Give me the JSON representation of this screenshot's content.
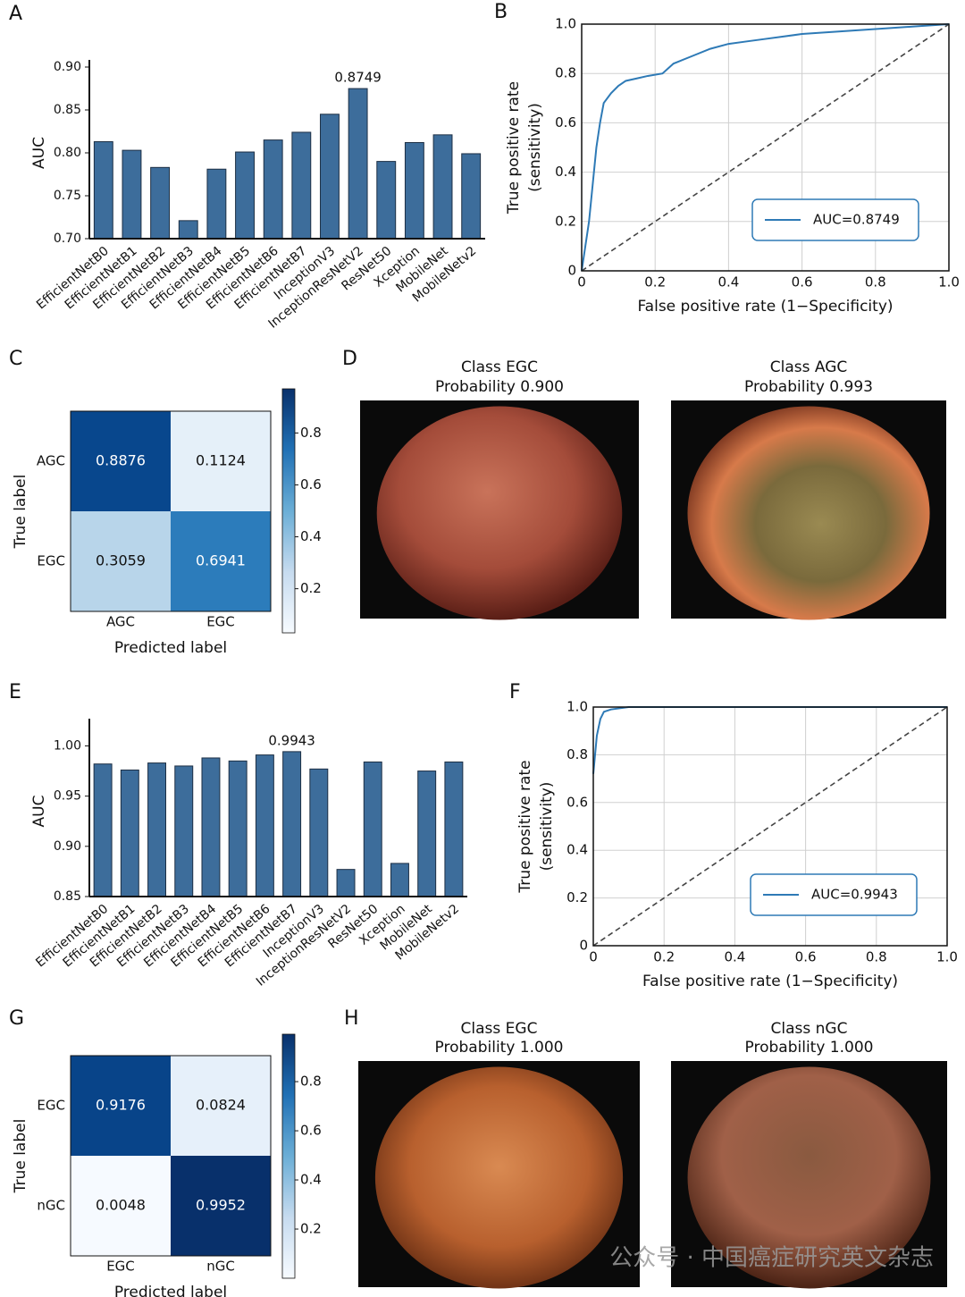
{
  "chart_data": [
    {
      "type": "bar",
      "label": "A",
      "ylabel": "AUC",
      "categories": [
        "EfficientNetB0",
        "EfficientNetB1",
        "EfficientNetB2",
        "EfficientNetB3",
        "EfficientNetB4",
        "EfficientNetB5",
        "EfficientNetB6",
        "EfficientNetB7",
        "InceptionV3",
        "InceptionResNetV2",
        "ResNet50",
        "Xception",
        "MobileNet",
        "MobileNetv2"
      ],
      "values": [
        0.813,
        0.803,
        0.783,
        0.721,
        0.781,
        0.801,
        0.815,
        0.824,
        0.845,
        0.8749,
        0.79,
        0.812,
        0.821,
        0.799
      ],
      "value_labels": [
        null,
        null,
        null,
        null,
        null,
        null,
        null,
        null,
        null,
        "0.8749",
        null,
        null,
        null,
        null
      ],
      "color": "#3d6d9b",
      "ylim": [
        0.7,
        0.9
      ],
      "yticks": [
        {
          "value": 0.7,
          "label": "0.70"
        },
        {
          "value": 0.75,
          "label": "0.75"
        },
        {
          "value": 0.8,
          "label": "0.80"
        },
        {
          "value": 0.85,
          "label": "0.85"
        },
        {
          "value": 0.9,
          "label": "0.90"
        }
      ]
    },
    {
      "type": "line",
      "label": "B",
      "xlabel": "False positive rate (1−Specificity)",
      "ylabel": [
        "True positive rate",
        "(sensitivity)"
      ],
      "x": [
        0,
        0.005,
        0.01,
        0.02,
        0.03,
        0.04,
        0.05,
        0.06,
        0.08,
        0.1,
        0.12,
        0.15,
        0.18,
        0.22,
        0.25,
        0.3,
        0.35,
        0.4,
        0.45,
        0.5,
        0.6,
        0.7,
        0.8,
        0.9,
        1
      ],
      "series": [
        {
          "name": "AUC=0.8749",
          "color": "#2e7ab6",
          "values": [
            0,
            0.05,
            0.1,
            0.2,
            0.35,
            0.5,
            0.6,
            0.68,
            0.72,
            0.75,
            0.77,
            0.78,
            0.79,
            0.8,
            0.84,
            0.87,
            0.9,
            0.92,
            0.93,
            0.94,
            0.96,
            0.97,
            0.98,
            0.99,
            1
          ]
        }
      ],
      "xlim": [
        0,
        1
      ],
      "ylim": [
        0,
        1
      ],
      "xticks": [
        0,
        0.2,
        0.4,
        0.6,
        0.8,
        {
          "value": 1,
          "label": "1.0"
        }
      ],
      "yticks": [
        0,
        0.2,
        0.4,
        0.6,
        0.8,
        {
          "value": 1,
          "label": "1.0"
        }
      ],
      "grid": true,
      "legend": "lower right"
    },
    {
      "type": "heatmap",
      "label": "C",
      "xlabel": "Predicted label",
      "ylabel": "True label",
      "rows": [
        "AGC",
        "EGC"
      ],
      "columns": [
        "AGC",
        "EGC"
      ],
      "values": [
        [
          0.8876,
          0.1124
        ],
        [
          0.3059,
          0.6941
        ]
      ],
      "colormap": "Blues",
      "clim": [
        0.03,
        0.97
      ],
      "cticks": [
        0.2,
        0.4,
        0.6,
        0.8
      ]
    },
    {
      "type": "image",
      "label": "D",
      "images": [
        {
          "title": [
            "Class EGC",
            "Probability 0.900"
          ]
        },
        {
          "title": [
            "Class AGC",
            "Probability 0.993"
          ]
        }
      ]
    },
    {
      "type": "bar",
      "label": "E",
      "ylabel": "AUC",
      "categories": [
        "EfficientNetB0",
        "EfficientNetB1",
        "EfficientNetB2",
        "EfficientNetB3",
        "EfficientNetB4",
        "EfficientNetB5",
        "EfficientNetB6",
        "EfficientNetB7",
        "InceptionV3",
        "InceptionResNetV2",
        "ResNet50",
        "Xception",
        "MobileNet",
        "MobileNetv2"
      ],
      "values": [
        0.982,
        0.976,
        0.983,
        0.98,
        0.988,
        0.985,
        0.991,
        0.9943,
        0.977,
        0.877,
        0.984,
        0.883,
        0.975,
        0.984
      ],
      "value_labels": [
        null,
        null,
        null,
        null,
        null,
        null,
        null,
        "0.9943",
        null,
        null,
        null,
        null,
        null,
        null
      ],
      "color": "#3d6d9b",
      "ylim": [
        0.85,
        1.02
      ],
      "yticks": [
        {
          "value": 0.85,
          "label": "0.85"
        },
        {
          "value": 0.9,
          "label": "0.90"
        },
        {
          "value": 0.95,
          "label": "0.95"
        },
        {
          "value": 1,
          "label": "1.00"
        }
      ]
    },
    {
      "type": "line",
      "label": "F",
      "xlabel": "False positive rate (1−Specificity)",
      "ylabel": [
        "True positive rate",
        "(sensitivity)"
      ],
      "x": [
        0,
        0.005,
        0.01,
        0.02,
        0.03,
        0.05,
        0.1,
        0.4,
        1
      ],
      "series": [
        {
          "name": "AUC=0.9943",
          "color": "#2e7ab6",
          "values": [
            0.72,
            0.8,
            0.88,
            0.95,
            0.98,
            0.99,
            1,
            1,
            1
          ]
        }
      ],
      "xlim": [
        0,
        1
      ],
      "ylim": [
        0,
        1
      ],
      "xticks": [
        0,
        0.2,
        0.4,
        0.6,
        0.8,
        {
          "value": 1,
          "label": "1.0"
        }
      ],
      "yticks": [
        0,
        0.2,
        0.4,
        0.6,
        0.8,
        {
          "value": 1,
          "label": "1.0"
        }
      ],
      "grid": true,
      "legend": "lower right"
    },
    {
      "type": "heatmap",
      "label": "G",
      "xlabel": "Predicted label",
      "ylabel": "True label",
      "rows": [
        "EGC",
        "nGC"
      ],
      "columns": [
        "EGC",
        "nGC"
      ],
      "values": [
        [
          0.9176,
          0.0824
        ],
        [
          0.0048,
          0.9952
        ]
      ],
      "colormap": "Blues",
      "clim": [
        0,
        0.993
      ],
      "cticks": [
        0.2,
        0.4,
        0.6,
        0.8
      ]
    },
    {
      "type": "image",
      "label": "H",
      "images": [
        {
          "title": [
            "Class EGC",
            "Probability 1.000"
          ]
        },
        {
          "title": [
            "Class nGC",
            "Probability 1.000"
          ]
        }
      ]
    }
  ],
  "watermark": "公众号 · 中国癌症研究英文杂志"
}
